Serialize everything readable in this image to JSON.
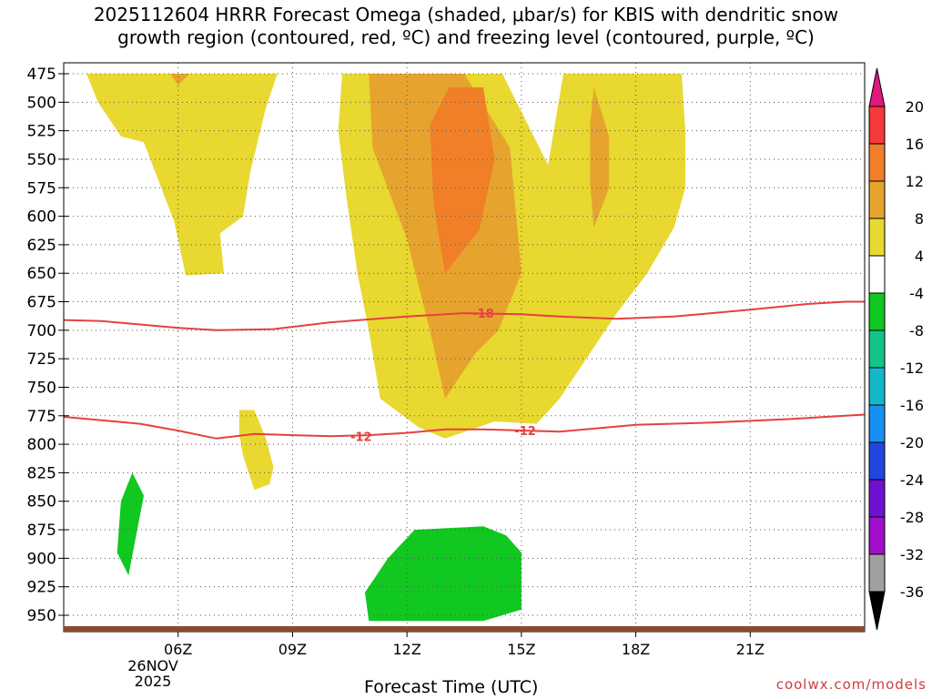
{
  "chart_data": {
    "type": "heatmap",
    "title_line1": "2025112604 HRRR Forecast Omega (shaded, μbar/s) for KBIS with dendritic snow",
    "title_line2": "growth region (contoured, red, ºC) and freezing level (contoured, purple, ºC)",
    "xlabel": "Forecast Time (UTC)",
    "credit": "coolwx.com/models",
    "date_label": [
      "26NOV",
      "2025"
    ],
    "xlim": [
      3,
      24
    ],
    "ylim": [
      475,
      960
    ],
    "x_ticks": [
      {
        "value": 6,
        "label": "06Z"
      },
      {
        "value": 9,
        "label": "09Z"
      },
      {
        "value": 12,
        "label": "12Z"
      },
      {
        "value": 15,
        "label": "15Z"
      },
      {
        "value": 18,
        "label": "18Z"
      },
      {
        "value": 21,
        "label": "21Z"
      }
    ],
    "y_ticks": [
      475,
      500,
      525,
      550,
      575,
      600,
      625,
      650,
      675,
      700,
      725,
      750,
      775,
      800,
      825,
      850,
      875,
      900,
      925,
      950
    ],
    "colorbar": {
      "labels": [
        "20",
        "16",
        "12",
        "8",
        "4",
        "-4",
        "-8",
        "-12",
        "-16",
        "-20",
        "-24",
        "-28",
        "-32",
        "-36"
      ],
      "colors": [
        "#f43a3a",
        "#f07f28",
        "#e6a42e",
        "#e8d830",
        "#ffffff",
        "#10c820",
        "#12c48a",
        "#12b8c8",
        "#1890f0",
        "#2048e0",
        "#7010d0",
        "#a010c8",
        "#a0a0a0"
      ],
      "top_color": "#e01880",
      "bottom_color": "#000000"
    },
    "shaded_regions": [
      {
        "name": "omega-4to8-upper-left",
        "fill": "#e8d830",
        "points": [
          [
            3.6,
            475
          ],
          [
            8.6,
            475
          ],
          [
            8.3,
            505
          ],
          [
            7.9,
            560
          ],
          [
            7.7,
            600
          ],
          [
            7.1,
            615
          ],
          [
            7.2,
            650
          ],
          [
            6.2,
            652
          ],
          [
            5.9,
            605
          ],
          [
            5.1,
            535
          ],
          [
            4.5,
            530
          ],
          [
            3.9,
            500
          ],
          [
            3.6,
            475
          ]
        ]
      },
      {
        "name": "omega-4to8-upper-left-cap",
        "fill": "#e6a42e",
        "points": [
          [
            5.8,
            475
          ],
          [
            6.3,
            475
          ],
          [
            6.0,
            485
          ],
          [
            5.8,
            475
          ]
        ]
      },
      {
        "name": "omega-4to8-main",
        "fill": "#e8d830",
        "points": [
          [
            10.3,
            475
          ],
          [
            14.5,
            475
          ],
          [
            15.7,
            555
          ],
          [
            16.1,
            475
          ],
          [
            19.2,
            475
          ],
          [
            19.3,
            525
          ],
          [
            19.3,
            575
          ],
          [
            19.0,
            610
          ],
          [
            18.3,
            650
          ],
          [
            17.5,
            685
          ],
          [
            16.6,
            730
          ],
          [
            16.0,
            760
          ],
          [
            15.4,
            782
          ],
          [
            14.3,
            780
          ],
          [
            13.0,
            795
          ],
          [
            12.3,
            785
          ],
          [
            11.3,
            760
          ],
          [
            11.0,
            700
          ],
          [
            10.7,
            650
          ],
          [
            10.4,
            580
          ],
          [
            10.2,
            525
          ],
          [
            10.3,
            475
          ]
        ]
      },
      {
        "name": "omega-8to12-main",
        "fill": "#e6a42e",
        "points": [
          [
            11.0,
            475
          ],
          [
            13.5,
            475
          ],
          [
            14.7,
            540
          ],
          [
            15.0,
            650
          ],
          [
            14.4,
            700
          ],
          [
            13.8,
            720
          ],
          [
            13.0,
            760
          ],
          [
            12.6,
            700
          ],
          [
            12.0,
            620
          ],
          [
            11.1,
            540
          ],
          [
            11.0,
            475
          ]
        ]
      },
      {
        "name": "omega-12to16-core",
        "fill": "#f07f28",
        "points": [
          [
            13.1,
            487
          ],
          [
            14.0,
            487
          ],
          [
            14.3,
            550
          ],
          [
            13.9,
            612
          ],
          [
            13.0,
            650
          ],
          [
            12.7,
            590
          ],
          [
            12.6,
            520
          ],
          [
            13.1,
            487
          ]
        ]
      },
      {
        "name": "omega-8to12-east-streak",
        "fill": "#e6a42e",
        "points": [
          [
            16.9,
            487
          ],
          [
            17.3,
            530
          ],
          [
            17.3,
            575
          ],
          [
            16.9,
            610
          ],
          [
            16.8,
            570
          ],
          [
            16.8,
            520
          ],
          [
            16.9,
            487
          ]
        ]
      },
      {
        "name": "omega-4to8-small-blob",
        "fill": "#e8d830",
        "points": [
          [
            7.6,
            770
          ],
          [
            8.0,
            770
          ],
          [
            8.3,
            795
          ],
          [
            8.5,
            820
          ],
          [
            8.4,
            835
          ],
          [
            8.0,
            840
          ],
          [
            7.7,
            810
          ],
          [
            7.6,
            790
          ],
          [
            7.6,
            770
          ]
        ]
      },
      {
        "name": "omega-neg4to-8-left-blob",
        "fill": "#10c820",
        "points": [
          [
            4.8,
            825
          ],
          [
            5.1,
            845
          ],
          [
            4.9,
            880
          ],
          [
            4.7,
            915
          ],
          [
            4.4,
            895
          ],
          [
            4.5,
            850
          ],
          [
            4.8,
            825
          ]
        ]
      },
      {
        "name": "omega-neg4to-8-bottom-blob",
        "fill": "#10c820",
        "points": [
          [
            11.0,
            955
          ],
          [
            10.9,
            930
          ],
          [
            11.5,
            900
          ],
          [
            12.2,
            875
          ],
          [
            14.0,
            872
          ],
          [
            14.6,
            880
          ],
          [
            15.0,
            895
          ],
          [
            15.0,
            945
          ],
          [
            14.0,
            955
          ],
          [
            11.0,
            955
          ]
        ]
      }
    ],
    "contours": [
      {
        "name": "contour-minus-18",
        "label": "-18",
        "label_at": [
          14.0,
          685
        ],
        "color": "#e64040",
        "points": [
          [
            3.0,
            691
          ],
          [
            4.0,
            692
          ],
          [
            6.0,
            698
          ],
          [
            7.0,
            700
          ],
          [
            8.5,
            699
          ],
          [
            10.0,
            693
          ],
          [
            12.0,
            688
          ],
          [
            13.5,
            685
          ],
          [
            15.0,
            686
          ],
          [
            16.0,
            688
          ],
          [
            17.5,
            690
          ],
          [
            19.0,
            688
          ],
          [
            21.0,
            682
          ],
          [
            22.5,
            677
          ],
          [
            23.5,
            675
          ],
          [
            24.0,
            675
          ]
        ]
      },
      {
        "name": "contour-minus-12",
        "label": "-12",
        "label_at": [
          10.8,
          793
        ],
        "color": "#e64040",
        "points": [
          [
            3.0,
            776
          ],
          [
            5.0,
            782
          ],
          [
            6.0,
            788
          ],
          [
            7.0,
            795
          ],
          [
            8.0,
            791
          ],
          [
            9.0,
            792
          ],
          [
            10.0,
            793
          ],
          [
            11.0,
            792
          ],
          [
            12.0,
            790
          ],
          [
            13.0,
            787
          ],
          [
            14.0,
            787
          ],
          [
            16.0,
            789
          ],
          [
            18.0,
            783
          ],
          [
            20.0,
            781
          ],
          [
            22.0,
            778
          ],
          [
            24.0,
            774
          ]
        ]
      }
    ]
  }
}
